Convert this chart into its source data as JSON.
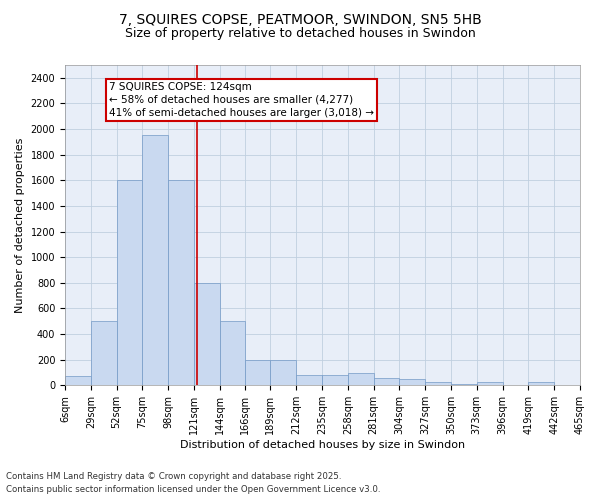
{
  "title1": "7, SQUIRES COPSE, PEATMOOR, SWINDON, SN5 5HB",
  "title2": "Size of property relative to detached houses in Swindon",
  "xlabel": "Distribution of detached houses by size in Swindon",
  "ylabel": "Number of detached properties",
  "bar_edges": [
    6,
    29,
    52,
    75,
    98,
    121,
    144,
    166,
    189,
    212,
    235,
    258,
    281,
    304,
    327,
    350,
    373,
    396,
    419,
    442,
    465
  ],
  "bar_heights": [
    75,
    500,
    1600,
    1950,
    1600,
    800,
    500,
    200,
    200,
    80,
    80,
    100,
    60,
    50,
    30,
    10,
    30,
    0,
    30,
    0
  ],
  "bar_color": "#c9d9f0",
  "bar_edge_color": "#7399c6",
  "grid_color": "#c0cfe0",
  "bg_color": "#e8eef8",
  "vline_x": 124,
  "vline_color": "#cc0000",
  "annotation_text": "7 SQUIRES COPSE: 124sqm\n← 58% of detached houses are smaller (4,277)\n41% of semi-detached houses are larger (3,018) →",
  "annotation_box_color": "#cc0000",
  "ylim": [
    0,
    2500
  ],
  "yticks": [
    0,
    200,
    400,
    600,
    800,
    1000,
    1200,
    1400,
    1600,
    1800,
    2000,
    2200,
    2400
  ],
  "footnote1": "Contains HM Land Registry data © Crown copyright and database right 2025.",
  "footnote2": "Contains public sector information licensed under the Open Government Licence v3.0.",
  "title_fontsize": 10,
  "subtitle_fontsize": 9,
  "label_fontsize": 8,
  "tick_fontsize": 7,
  "annot_fontsize": 7.5
}
